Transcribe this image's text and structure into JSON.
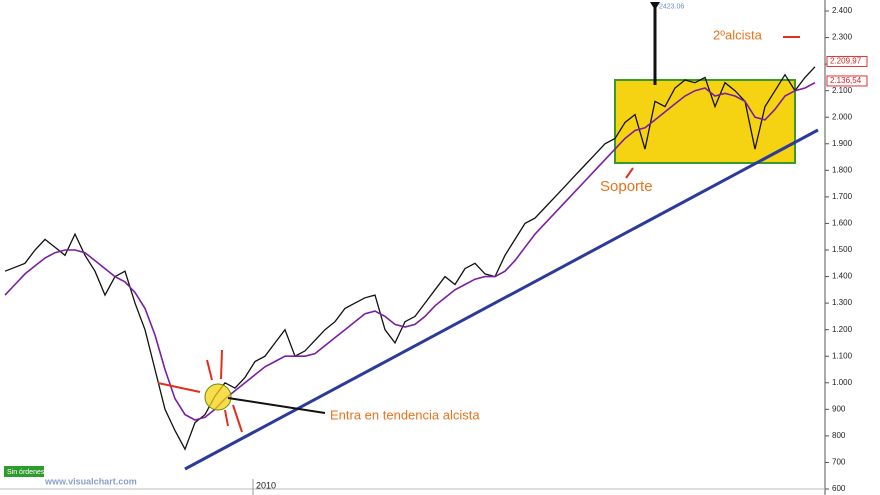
{
  "chart_data": {
    "type": "line",
    "xlim": [
      0,
      82.5
    ],
    "xticks": [
      {
        "value": 25.3,
        "label": "2010"
      }
    ],
    "ylim": [
      600,
      2400
    ],
    "yticks": [
      600,
      700,
      800,
      900,
      {
        "value": 1000,
        "label": "1.000"
      },
      {
        "value": 1100,
        "label": "1.100"
      },
      {
        "value": 1200,
        "label": "1.200"
      },
      {
        "value": 1300,
        "label": "1.300"
      },
      {
        "value": 1400,
        "label": "1.400"
      },
      {
        "value": 1500,
        "label": "1.500"
      },
      {
        "value": 1600,
        "label": "1.600"
      },
      {
        "value": 1700,
        "label": "1.700"
      },
      {
        "value": 1800,
        "label": "1.800"
      },
      {
        "value": 1900,
        "label": "1.900"
      },
      {
        "value": 2000,
        "label": "2.000"
      },
      {
        "value": 2100,
        "label": "2.100"
      },
      {
        "value": 2200,
        "label": "2.200"
      },
      {
        "value": 2300,
        "label": "2.300"
      },
      {
        "value": 2400,
        "label": "2.400"
      }
    ],
    "grid": false,
    "series": [
      {
        "color": "#111111",
        "values": [
          1420,
          1435,
          1450,
          1500,
          1540,
          1510,
          1480,
          1560,
          1480,
          1420,
          1330,
          1400,
          1420,
          1300,
          1200,
          1050,
          900,
          820,
          750,
          850,
          880,
          950,
          1000,
          980,
          1020,
          1080,
          1100,
          1150,
          1200,
          1100,
          1120,
          1160,
          1200,
          1230,
          1280,
          1300,
          1320,
          1330,
          1200,
          1150,
          1230,
          1250,
          1300,
          1350,
          1400,
          1370,
          1430,
          1450,
          1410,
          1400,
          1480,
          1540,
          1600,
          1620,
          1660,
          1700,
          1740,
          1780,
          1820,
          1860,
          1900,
          1920,
          1980,
          2010,
          1880,
          2060,
          2040,
          2110,
          2140,
          2130,
          2150,
          2040,
          2130,
          2100,
          2060,
          1880,
          2040,
          2100,
          2160,
          2100,
          2150,
          2190
        ]
      },
      {
        "color": "#7b1fa2",
        "values": [
          1330,
          1370,
          1410,
          1440,
          1470,
          1490,
          1500,
          1500,
          1490,
          1460,
          1430,
          1400,
          1380,
          1340,
          1280,
          1180,
          1050,
          940,
          880,
          860,
          870,
          900,
          940,
          970,
          1000,
          1030,
          1060,
          1080,
          1100,
          1100,
          1100,
          1110,
          1140,
          1170,
          1200,
          1230,
          1260,
          1270,
          1250,
          1220,
          1210,
          1220,
          1250,
          1290,
          1320,
          1350,
          1370,
          1390,
          1400,
          1400,
          1420,
          1460,
          1510,
          1560,
          1600,
          1640,
          1680,
          1720,
          1760,
          1800,
          1840,
          1880,
          1920,
          1950,
          1960,
          1990,
          2020,
          2050,
          2080,
          2100,
          2110,
          2080,
          2090,
          2080,
          2060,
          2000,
          1990,
          2030,
          2080,
          2100,
          2110,
          2130
        ]
      }
    ],
    "annotations": [
      {
        "value": 2209.97,
        "label": "2.209,97"
      },
      {
        "value": 2136.54,
        "label": "2.136,54"
      },
      {
        "value": 2423.06,
        "label": "2423.06"
      }
    ],
    "notes": [
      "2ºalcista",
      "Soporte",
      "Entra en tendencia alcista",
      "Sin órdenes",
      "www.visualchart.com"
    ]
  }
}
